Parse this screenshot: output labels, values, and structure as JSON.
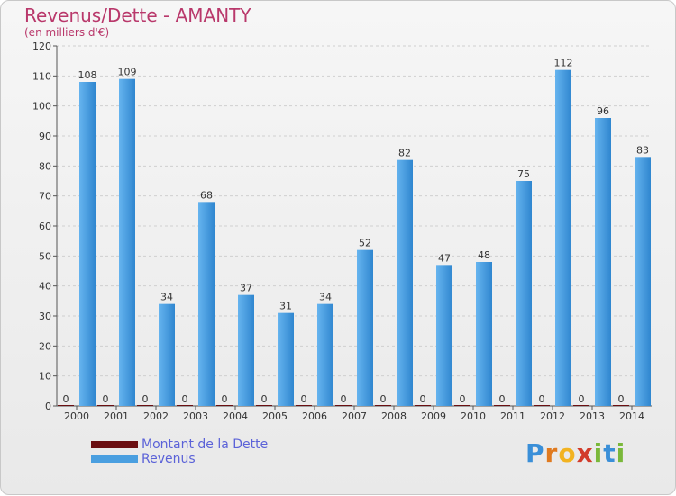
{
  "header": {
    "title": "Revenus/Dette - AMANTY",
    "subtitle": "(en milliers d'€)"
  },
  "chart_data": {
    "type": "bar",
    "categories": [
      "2000",
      "2001",
      "2002",
      "2003",
      "2004",
      "2005",
      "2006",
      "2007",
      "2008",
      "2009",
      "2010",
      "2011",
      "2012",
      "2013",
      "2014"
    ],
    "series": [
      {
        "name": "Montant de la Dette",
        "color": "#6b0f12",
        "values": [
          0,
          0,
          0,
          0,
          0,
          0,
          0,
          0,
          0,
          0,
          0,
          0,
          0,
          0,
          0
        ]
      },
      {
        "name": "Revenus",
        "color": "#4a9fe0",
        "values": [
          108,
          109,
          34,
          68,
          37,
          31,
          34,
          52,
          82,
          47,
          48,
          75,
          112,
          96,
          83
        ]
      }
    ],
    "ylim": [
      0,
      120
    ],
    "yticks": [
      0,
      10,
      20,
      30,
      40,
      50,
      60,
      70,
      80,
      90,
      100,
      110,
      120
    ],
    "grid": true,
    "legend": "bottom-left"
  },
  "legend": {
    "items": [
      {
        "label": "Montant de la Dette",
        "color": "#6b0f12"
      },
      {
        "label": "Revenus",
        "color": "#4a9fe0"
      }
    ]
  },
  "logo": {
    "letters": [
      "P",
      "r",
      "o",
      "x",
      "i",
      "t",
      "i"
    ],
    "colors": [
      "#3a8fd8",
      "#e07a1f",
      "#f2b321",
      "#d23b2a",
      "#7ab83a",
      "#3a8fd8",
      "#7ab83a"
    ]
  }
}
